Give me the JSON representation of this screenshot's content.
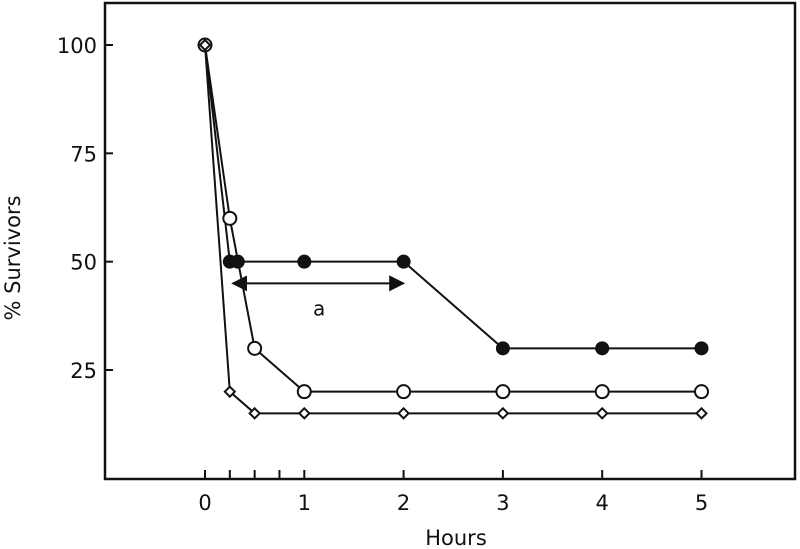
{
  "chart_data": {
    "type": "line",
    "title": "",
    "xlabel": "Hours",
    "ylabel": "% Survivors",
    "xlim": [
      -1,
      6
    ],
    "ylim": [
      0,
      110
    ],
    "grid": false,
    "legend": null,
    "x_ticks": [
      0,
      1,
      2,
      3,
      4,
      5
    ],
    "x_minor_ticks": [
      0.25,
      0.5,
      0.75
    ],
    "y_ticks": [
      25,
      50,
      75,
      100
    ],
    "series": [
      {
        "name": "filled-circle",
        "marker": "filled-circle",
        "x": [
          0,
          0.25,
          0.33,
          1,
          2,
          3,
          4,
          5
        ],
        "y": [
          100,
          50,
          50,
          50,
          50,
          30,
          30,
          30
        ]
      },
      {
        "name": "open-circle",
        "marker": "open-circle",
        "x": [
          0,
          0.25,
          0.5,
          1,
          2,
          3,
          4,
          5
        ],
        "y": [
          100,
          60,
          30,
          20,
          20,
          20,
          20,
          20
        ]
      },
      {
        "name": "open-diamond",
        "marker": "open-diamond",
        "x": [
          0,
          0.25,
          0.5,
          1,
          2,
          3,
          4,
          5
        ],
        "y": [
          100,
          20,
          15,
          15,
          15,
          15,
          15,
          15
        ]
      }
    ],
    "annotations": [
      {
        "text": "a",
        "type": "double-arrow",
        "x_from": 0.28,
        "x_to": 2.0,
        "y": 45,
        "label_x": 1.15,
        "label_y": 39
      }
    ]
  }
}
